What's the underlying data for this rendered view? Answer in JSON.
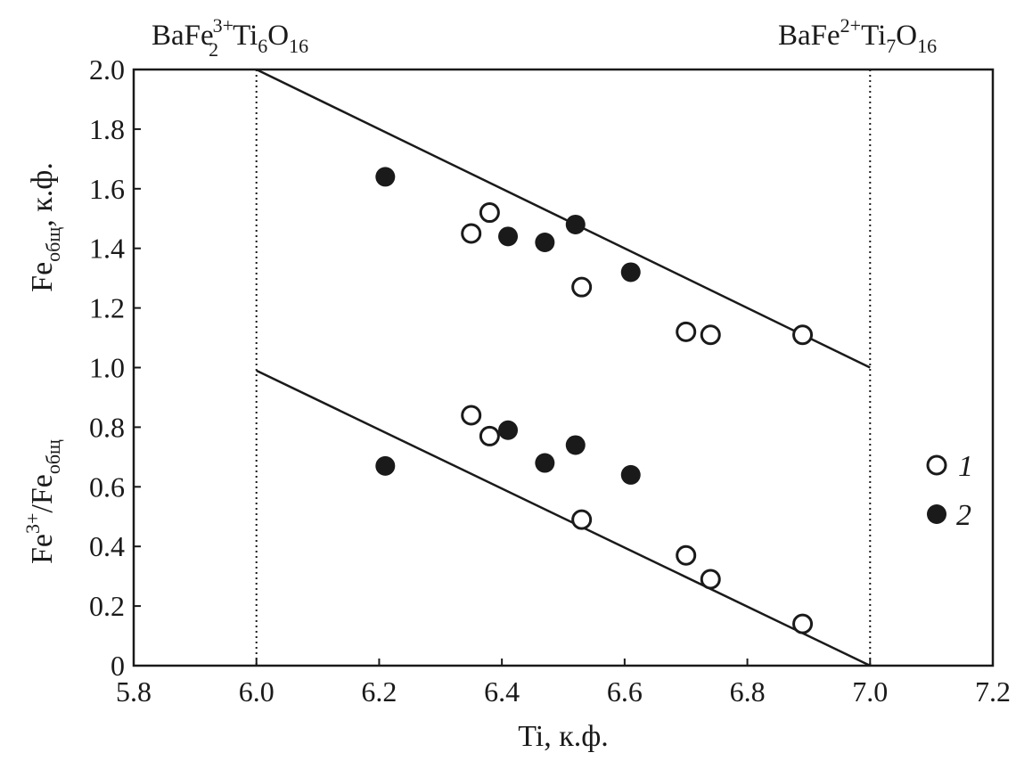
{
  "chart_data": {
    "type": "scatter",
    "xlabel": "Ti, к.ф.",
    "ylabel_upper": {
      "base": "Fe",
      "sub": "общ",
      "suffix": ", к.ф."
    },
    "ylabel_lower": {
      "base1": "Fe",
      "sup": "3+",
      "mid": "/Fe",
      "sub": "общ"
    },
    "xlim": [
      5.8,
      7.2
    ],
    "ylim": [
      0,
      2.0
    ],
    "x_ticks": [
      "5.8",
      "6.0",
      "6.2",
      "6.4",
      "6.6",
      "6.8",
      "7.0",
      "7.2"
    ],
    "y_ticks": [
      "0",
      "0.2",
      "0.4",
      "0.6",
      "0.8",
      "1.0",
      "1.2",
      "1.4",
      "1.6",
      "1.8",
      "2.0"
    ],
    "grid": false,
    "legend_position": "right",
    "reference_lines": [
      {
        "x": 6.0,
        "label": {
          "a": "BaFe",
          "sub": "2",
          "sup": "3+",
          "b": "Ti",
          "sub2": "6",
          "c": "O",
          "sub3": "16"
        }
      },
      {
        "x": 7.0,
        "label": {
          "a": "BaFe",
          "sup": "2+",
          "b": "Ti",
          "sub2": "7",
          "c": "O",
          "sub3": "16"
        }
      }
    ],
    "trend_lines": [
      {
        "from": [
          6.0,
          2.0
        ],
        "to": [
          7.0,
          1.0
        ]
      },
      {
        "from": [
          6.0,
          0.99
        ],
        "to": [
          7.0,
          0.0
        ]
      }
    ],
    "series": [
      {
        "name": "1",
        "marker": "open-circle",
        "points": [
          [
            6.35,
            1.45
          ],
          [
            6.38,
            1.52
          ],
          [
            6.53,
            1.27
          ],
          [
            6.7,
            1.12
          ],
          [
            6.74,
            1.11
          ],
          [
            6.89,
            1.11
          ],
          [
            6.35,
            0.84
          ],
          [
            6.38,
            0.77
          ],
          [
            6.53,
            0.49
          ],
          [
            6.7,
            0.37
          ],
          [
            6.74,
            0.29
          ],
          [
            6.89,
            0.14
          ]
        ]
      },
      {
        "name": "2",
        "marker": "filled-circle",
        "points": [
          [
            6.21,
            1.64
          ],
          [
            6.41,
            1.44
          ],
          [
            6.47,
            1.42
          ],
          [
            6.52,
            1.48
          ],
          [
            6.61,
            1.32
          ],
          [
            6.21,
            0.67
          ],
          [
            6.41,
            0.79
          ],
          [
            6.47,
            0.68
          ],
          [
            6.52,
            0.74
          ],
          [
            6.61,
            0.64
          ]
        ]
      }
    ],
    "colors": {
      "ink": "#1a1a1a",
      "open_fill": "#ffffff"
    }
  }
}
